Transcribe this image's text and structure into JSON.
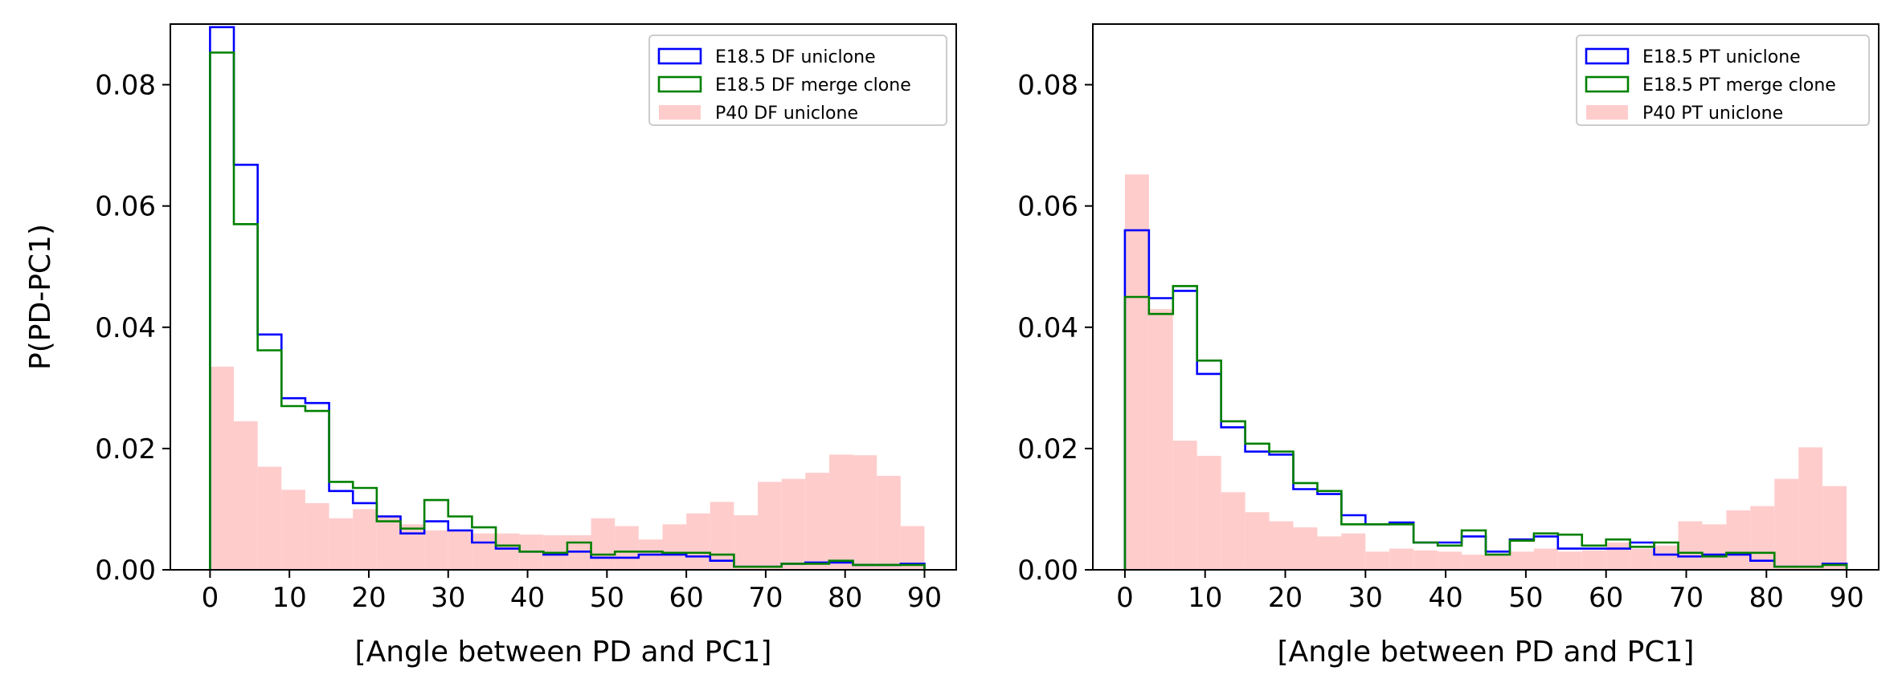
{
  "chart_data": [
    {
      "type": "histogram",
      "title": "",
      "xlabel": "[Angle between PD and PC1]",
      "ylabel": "P(PD-PC1)",
      "xlim": [
        -5,
        94
      ],
      "ylim": [
        0,
        0.09
      ],
      "xticks": [
        "0",
        "10",
        "20",
        "30",
        "40",
        "50",
        "60",
        "70",
        "80",
        "90"
      ],
      "yticks": [
        "0.00",
        "0.02",
        "0.04",
        "0.06",
        "0.08"
      ],
      "legend_position": "top-right",
      "bin_edges": [
        0,
        3,
        6,
        9,
        12,
        15,
        18,
        21,
        24,
        27,
        30,
        33,
        36,
        39,
        42,
        45,
        48,
        51,
        54,
        57,
        60,
        63,
        66,
        69,
        72,
        75,
        78,
        81,
        84,
        87,
        90
      ],
      "series": [
        {
          "name": "E18.5 DF uniclone",
          "style": "step",
          "color": "#0000ff",
          "values": [
            0.0895,
            0.0668,
            0.0388,
            0.0283,
            0.0275,
            0.013,
            0.011,
            0.0088,
            0.006,
            0.008,
            0.0065,
            0.0045,
            0.0035,
            0.003,
            0.0025,
            0.003,
            0.002,
            0.002,
            0.0025,
            0.0025,
            0.0022,
            0.0015,
            0.0005,
            0.0005,
            0.001,
            0.0012,
            0.0012,
            0.0008,
            0.0008,
            0.001
          ]
        },
        {
          "name": "E18.5 DF merge clone",
          "style": "step",
          "color": "#008000",
          "values": [
            0.0853,
            0.057,
            0.0362,
            0.027,
            0.0262,
            0.0145,
            0.0135,
            0.008,
            0.0068,
            0.0115,
            0.0088,
            0.007,
            0.004,
            0.003,
            0.0028,
            0.0045,
            0.0025,
            0.003,
            0.003,
            0.0028,
            0.0028,
            0.0025,
            0.0005,
            0.0005,
            0.001,
            0.001,
            0.0015,
            0.0008,
            0.0008,
            0.0008
          ]
        },
        {
          "name": "P40 DF uniclone",
          "style": "filled",
          "color": "#ffcccc",
          "values": [
            0.0335,
            0.0245,
            0.017,
            0.0132,
            0.011,
            0.0085,
            0.01,
            0.009,
            0.0075,
            0.0065,
            0.0065,
            0.006,
            0.006,
            0.0058,
            0.0057,
            0.0057,
            0.0085,
            0.0072,
            0.005,
            0.0075,
            0.0093,
            0.0112,
            0.009,
            0.0145,
            0.015,
            0.016,
            0.019,
            0.0189,
            0.0155,
            0.0072
          ]
        }
      ]
    },
    {
      "type": "histogram",
      "title": "",
      "xlabel": "[Angle between PD and PC1]",
      "ylabel": "",
      "xlim": [
        -4,
        94
      ],
      "ylim": [
        0,
        0.09
      ],
      "xticks": [
        "0",
        "10",
        "20",
        "30",
        "40",
        "50",
        "60",
        "70",
        "80",
        "90"
      ],
      "yticks": [
        "0.00",
        "0.02",
        "0.04",
        "0.06",
        "0.08"
      ],
      "legend_position": "top-right",
      "bin_edges": [
        0,
        3,
        6,
        9,
        12,
        15,
        18,
        21,
        24,
        27,
        30,
        33,
        36,
        39,
        42,
        45,
        48,
        51,
        54,
        57,
        60,
        63,
        66,
        69,
        72,
        75,
        78,
        81,
        84,
        87,
        90
      ],
      "series": [
        {
          "name": "E18.5 PT uniclone",
          "style": "step",
          "color": "#0000ff",
          "values": [
            0.056,
            0.0448,
            0.046,
            0.0323,
            0.0235,
            0.0195,
            0.019,
            0.0133,
            0.0125,
            0.009,
            0.0075,
            0.0078,
            0.0045,
            0.0045,
            0.0055,
            0.003,
            0.005,
            0.0055,
            0.0035,
            0.0035,
            0.0035,
            0.0045,
            0.0025,
            0.0022,
            0.0025,
            0.0025,
            0.0015,
            0.0005,
            0.0005,
            0.001
          ]
        },
        {
          "name": "E18.5 PT merge clone",
          "style": "step",
          "color": "#008000",
          "values": [
            0.045,
            0.0422,
            0.0468,
            0.0345,
            0.0245,
            0.0208,
            0.0195,
            0.0143,
            0.013,
            0.0075,
            0.0075,
            0.0075,
            0.0045,
            0.004,
            0.0065,
            0.0025,
            0.0048,
            0.006,
            0.0058,
            0.004,
            0.005,
            0.0038,
            0.0045,
            0.0028,
            0.0022,
            0.0028,
            0.0028,
            0.0005,
            0.0005,
            0.0008
          ]
        },
        {
          "name": "P40 PT uniclone",
          "style": "filled",
          "color": "#ffcccc",
          "values": [
            0.0652,
            0.043,
            0.0213,
            0.0188,
            0.0128,
            0.0095,
            0.008,
            0.007,
            0.0055,
            0.006,
            0.003,
            0.0035,
            0.0032,
            0.003,
            0.0025,
            0.0025,
            0.003,
            0.0035,
            0.003,
            0.0032,
            0.0045,
            0.0035,
            0.004,
            0.008,
            0.0075,
            0.0098,
            0.0105,
            0.015,
            0.0202,
            0.0138
          ]
        }
      ]
    }
  ]
}
